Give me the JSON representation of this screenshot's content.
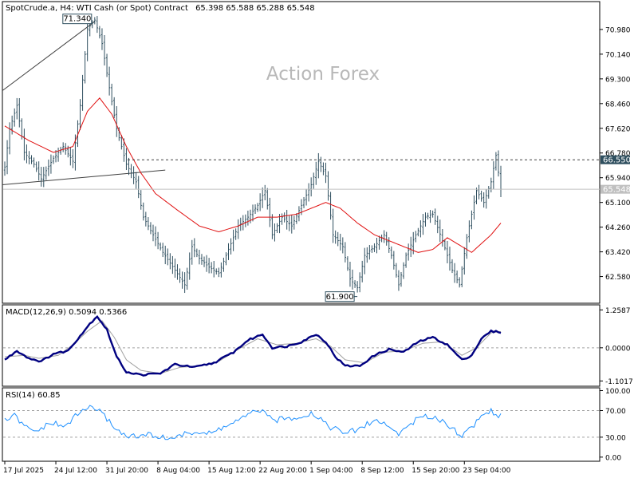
{
  "header": {
    "symbol": "SpotCrude.a, H4:  WTI Cash (or Spot) Contract",
    "ohlc": "65.398 65.588 65.288 65.548"
  },
  "watermark": "Action Forex",
  "colors": {
    "candle": "#2f4f5f",
    "ma": "#e01010",
    "macd": "#000080",
    "signal": "#a0a0a0",
    "rsi": "#1e90ff",
    "resistance_label_bg": "#2f4f5f",
    "current_label_bg": "#c0c0c0"
  },
  "panels": {
    "macd_label": "MACD(12,26,9) 0.5094 0.5366",
    "rsi_label": "RSI(14) 60.85"
  },
  "annotations": {
    "high_label": "71.340",
    "low_label": "61.900",
    "resistance_label": "66.550",
    "current_label": "65.548"
  },
  "chart_data": [
    {
      "type": "candlestick",
      "ylim": [
        61.7,
        71.9
      ],
      "yticks": [
        "70.980",
        "70.140",
        "69.300",
        "68.460",
        "67.620",
        "66.780",
        "65.940",
        "65.100",
        "64.260",
        "63.420",
        "62.580"
      ],
      "ytick_values": [
        70.98,
        70.14,
        69.3,
        68.46,
        67.62,
        66.78,
        65.94,
        65.1,
        64.26,
        63.42,
        62.58
      ],
      "xticks": [
        "17 Jul 2025",
        "24 Jul 12:00",
        "31 Jul 20:00",
        "8 Aug 04:00",
        "15 Aug 12:00",
        "22 Aug 20:00",
        "1 Sep 04:00",
        "8 Sep 12:00",
        "15 Sep 20:00",
        "23 Sep 04:00"
      ],
      "xtick_index": [
        0,
        21,
        42,
        63,
        84,
        105,
        126,
        147,
        168,
        189
      ],
      "price_anchors": [
        [
          0,
          66.3
        ],
        [
          2,
          67.6
        ],
        [
          5,
          68.4
        ],
        [
          8,
          66.8
        ],
        [
          12,
          66.4
        ],
        [
          15,
          65.9
        ],
        [
          20,
          66.6
        ],
        [
          24,
          67.0
        ],
        [
          28,
          66.5
        ],
        [
          31,
          68.4
        ],
        [
          34,
          71.0
        ],
        [
          37,
          71.3
        ],
        [
          40,
          70.5
        ],
        [
          43,
          69.0
        ],
        [
          46,
          67.6
        ],
        [
          50,
          66.4
        ],
        [
          54,
          65.8
        ],
        [
          57,
          64.6
        ],
        [
          61,
          64.0
        ],
        [
          65,
          63.4
        ],
        [
          70,
          62.8
        ],
        [
          74,
          62.3
        ],
        [
          77,
          63.6
        ],
        [
          80,
          63.2
        ],
        [
          84,
          62.9
        ],
        [
          88,
          62.7
        ],
        [
          92,
          63.5
        ],
        [
          96,
          64.3
        ],
        [
          100,
          64.6
        ],
        [
          104,
          65.0
        ],
        [
          107,
          65.5
        ],
        [
          110,
          64.0
        ],
        [
          114,
          64.6
        ],
        [
          118,
          64.3
        ],
        [
          122,
          65.0
        ],
        [
          126,
          65.7
        ],
        [
          129,
          66.5
        ],
        [
          132,
          66.0
        ],
        [
          135,
          64.0
        ],
        [
          139,
          63.6
        ],
        [
          142,
          62.5
        ],
        [
          145,
          62.2
        ],
        [
          148,
          63.3
        ],
        [
          152,
          63.6
        ],
        [
          156,
          64.0
        ],
        [
          159,
          63.3
        ],
        [
          162,
          62.3
        ],
        [
          165,
          63.3
        ],
        [
          169,
          64.0
        ],
        [
          173,
          64.6
        ],
        [
          176,
          64.7
        ],
        [
          180,
          63.8
        ],
        [
          184,
          62.8
        ],
        [
          187,
          62.3
        ],
        [
          190,
          63.9
        ],
        [
          194,
          65.5
        ],
        [
          197,
          65.1
        ],
        [
          200,
          65.8
        ],
        [
          202,
          66.7
        ],
        [
          204,
          65.55
        ]
      ],
      "moving_average_anchors": [
        [
          0,
          67.7
        ],
        [
          10,
          67.2
        ],
        [
          20,
          66.8
        ],
        [
          28,
          67.0
        ],
        [
          34,
          68.2
        ],
        [
          39,
          68.65
        ],
        [
          44,
          68.1
        ],
        [
          50,
          67.0
        ],
        [
          56,
          66.1
        ],
        [
          62,
          65.4
        ],
        [
          70,
          64.9
        ],
        [
          80,
          64.3
        ],
        [
          88,
          64.1
        ],
        [
          96,
          64.3
        ],
        [
          104,
          64.6
        ],
        [
          112,
          64.6
        ],
        [
          120,
          64.7
        ],
        [
          126,
          64.9
        ],
        [
          132,
          65.1
        ],
        [
          138,
          64.9
        ],
        [
          145,
          64.4
        ],
        [
          152,
          64.0
        ],
        [
          158,
          63.8
        ],
        [
          164,
          63.6
        ],
        [
          170,
          63.4
        ],
        [
          176,
          63.5
        ],
        [
          182,
          63.9
        ],
        [
          188,
          63.6
        ],
        [
          192,
          63.4
        ],
        [
          196,
          63.7
        ],
        [
          200,
          64.0
        ],
        [
          204,
          64.4
        ]
      ],
      "resistance": 66.55,
      "current": 65.548,
      "high": 71.34,
      "low": 61.9,
      "trendlines": [
        {
          "from": [
            0,
            68.9
          ],
          "to": [
            37,
            71.25
          ]
        },
        {
          "from": [
            0,
            65.7
          ],
          "to": [
            66,
            66.2
          ]
        }
      ]
    },
    {
      "type": "line",
      "name": "MACD(12,26,9)",
      "ylim": [
        -1.25,
        1.4
      ],
      "yticks": [
        "1.2587",
        "0.0000",
        "-1.1017"
      ],
      "ytick_values": [
        1.2587,
        0.0,
        -1.1017
      ],
      "macd_anchors": [
        [
          0,
          -0.4
        ],
        [
          5,
          -0.1
        ],
        [
          10,
          -0.35
        ],
        [
          15,
          -0.45
        ],
        [
          20,
          -0.2
        ],
        [
          26,
          -0.1
        ],
        [
          30,
          0.3
        ],
        [
          35,
          0.8
        ],
        [
          38,
          1.05
        ],
        [
          42,
          0.6
        ],
        [
          46,
          -0.3
        ],
        [
          50,
          -0.8
        ],
        [
          56,
          -0.9
        ],
        [
          64,
          -0.85
        ],
        [
          70,
          -0.55
        ],
        [
          78,
          -0.65
        ],
        [
          86,
          -0.5
        ],
        [
          94,
          -0.15
        ],
        [
          100,
          0.25
        ],
        [
          106,
          0.45
        ],
        [
          110,
          0.0
        ],
        [
          116,
          0.05
        ],
        [
          122,
          0.2
        ],
        [
          128,
          0.45
        ],
        [
          132,
          0.2
        ],
        [
          136,
          -0.3
        ],
        [
          140,
          -0.6
        ],
        [
          146,
          -0.6
        ],
        [
          152,
          -0.25
        ],
        [
          158,
          -0.05
        ],
        [
          164,
          -0.15
        ],
        [
          170,
          0.2
        ],
        [
          176,
          0.35
        ],
        [
          182,
          0.1
        ],
        [
          188,
          -0.4
        ],
        [
          192,
          -0.25
        ],
        [
          196,
          0.3
        ],
        [
          200,
          0.55
        ],
        [
          204,
          0.52
        ]
      ],
      "signal_anchors": [
        [
          0,
          -0.3
        ],
        [
          8,
          -0.25
        ],
        [
          14,
          -0.35
        ],
        [
          22,
          -0.25
        ],
        [
          28,
          0.1
        ],
        [
          34,
          0.55
        ],
        [
          40,
          0.9
        ],
        [
          45,
          0.35
        ],
        [
          50,
          -0.4
        ],
        [
          56,
          -0.75
        ],
        [
          64,
          -0.85
        ],
        [
          72,
          -0.65
        ],
        [
          80,
          -0.6
        ],
        [
          88,
          -0.45
        ],
        [
          96,
          -0.05
        ],
        [
          104,
          0.3
        ],
        [
          112,
          0.1
        ],
        [
          120,
          0.15
        ],
        [
          128,
          0.3
        ],
        [
          134,
          0.05
        ],
        [
          140,
          -0.4
        ],
        [
          148,
          -0.5
        ],
        [
          156,
          -0.15
        ],
        [
          164,
          -0.1
        ],
        [
          172,
          0.15
        ],
        [
          180,
          0.2
        ],
        [
          188,
          -0.25
        ],
        [
          194,
          0.0
        ],
        [
          200,
          0.5
        ],
        [
          204,
          0.54
        ]
      ]
    },
    {
      "type": "line",
      "name": "RSI(14)",
      "ylim": [
        -5,
        103
      ],
      "yticks": [
        "100.00",
        "70.00",
        "30.00",
        "0.00"
      ],
      "ytick_values": [
        100,
        70,
        30,
        0
      ],
      "rsi_anchors": [
        [
          0,
          55
        ],
        [
          4,
          62
        ],
        [
          8,
          46
        ],
        [
          12,
          38
        ],
        [
          16,
          45
        ],
        [
          20,
          52
        ],
        [
          24,
          44
        ],
        [
          28,
          58
        ],
        [
          32,
          70
        ],
        [
          36,
          77
        ],
        [
          40,
          65
        ],
        [
          44,
          50
        ],
        [
          48,
          35
        ],
        [
          54,
          30
        ],
        [
          60,
          34
        ],
        [
          66,
          28
        ],
        [
          72,
          32
        ],
        [
          78,
          38
        ],
        [
          84,
          35
        ],
        [
          90,
          45
        ],
        [
          96,
          55
        ],
        [
          100,
          62
        ],
        [
          104,
          72
        ],
        [
          106,
          68
        ],
        [
          110,
          55
        ],
        [
          116,
          58
        ],
        [
          122,
          62
        ],
        [
          126,
          66
        ],
        [
          130,
          58
        ],
        [
          134,
          45
        ],
        [
          140,
          36
        ],
        [
          146,
          42
        ],
        [
          150,
          52
        ],
        [
          154,
          55
        ],
        [
          158,
          45
        ],
        [
          162,
          35
        ],
        [
          166,
          48
        ],
        [
          170,
          58
        ],
        [
          176,
          62
        ],
        [
          182,
          50
        ],
        [
          188,
          32
        ],
        [
          192,
          45
        ],
        [
          196,
          62
        ],
        [
          200,
          70
        ],
        [
          204,
          61
        ]
      ]
    }
  ]
}
